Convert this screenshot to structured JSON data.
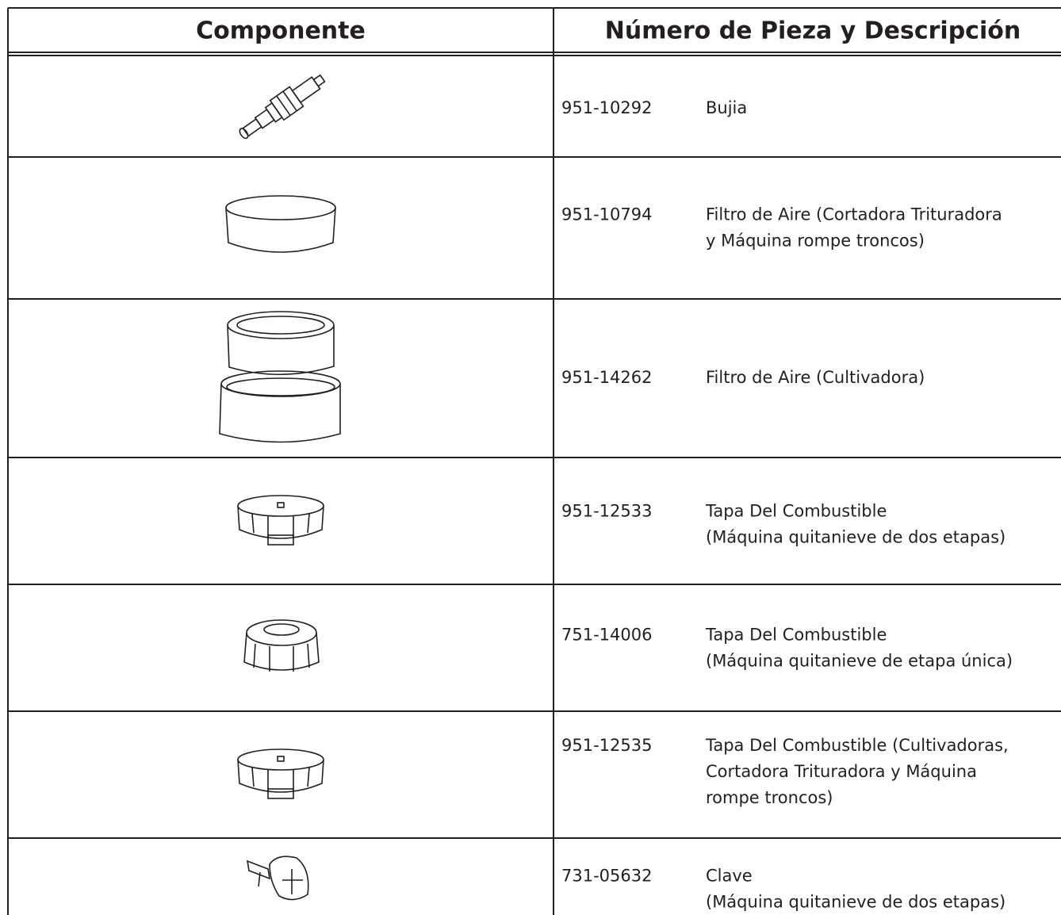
{
  "header": {
    "component": "Componente",
    "part": "Número de Pieza y Descripción"
  },
  "rows": [
    {
      "part_number": "951-10292",
      "description": [
        "Bujia"
      ]
    },
    {
      "part_number": "951-10794",
      "description": [
        "Filtro de Aire (Cortadora Trituradora",
        "y Máquina rompe troncos)"
      ]
    },
    {
      "part_number": "951-14262",
      "description": [
        "Filtro de Aire (Cultivadora)"
      ]
    },
    {
      "part_number": "951-12533",
      "description": [
        "Tapa Del Combustible",
        "(Máquina quitanieve de dos etapas)"
      ]
    },
    {
      "part_number": "751-14006",
      "description": [
        "Tapa Del Combustible",
        "(Máquina quitanieve de etapa única)"
      ]
    },
    {
      "part_number": "951-12535",
      "description": [
        "Tapa Del Combustible (Cultivadoras,",
        "Cortadora Trituradora y Máquina",
        "rompe troncos)"
      ]
    },
    {
      "part_number": "731-05632",
      "description": [
        "Clave",
        "(Máquina quitanieve de dos etapas)"
      ]
    }
  ]
}
